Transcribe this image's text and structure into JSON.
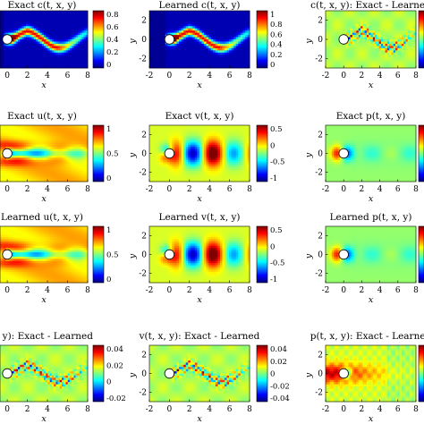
{
  "panels": [
    {
      "title": "Exact c(t, x, y)",
      "field": "c_exact",
      "xticks": [
        "0",
        "2",
        "4",
        "6",
        "8"
      ],
      "yticks": [],
      "xlabel": "x",
      "ylabel": "",
      "cbar": [
        "0.8",
        "0.6",
        "0.4",
        "0.2",
        "0"
      ]
    },
    {
      "title": "Learned c(t, x, y)",
      "field": "c_learned",
      "xticks": [
        "-2",
        "0",
        "2",
        "4",
        "6",
        "8"
      ],
      "yticks": [
        "2",
        "0",
        "-2"
      ],
      "xlabel": "x",
      "ylabel": "y",
      "cbar": [
        "1",
        "0.8",
        "0.6",
        "0.4",
        "0.2",
        "0"
      ]
    },
    {
      "title": "c(t, x, y): Exact - Learned",
      "field": "c_err",
      "xticks": [
        "-2",
        "0",
        "2",
        "4",
        "6",
        "8"
      ],
      "yticks": [
        "2",
        "0",
        "-2"
      ],
      "xlabel": "x",
      "ylabel": "y",
      "cbar": []
    },
    {
      "title": "Exact u(t, x, y)",
      "field": "u_exact",
      "xticks": [
        "0",
        "2",
        "4",
        "6",
        "8"
      ],
      "yticks": [],
      "xlabel": "x",
      "ylabel": "",
      "cbar": [
        "1",
        "0.5",
        "0"
      ]
    },
    {
      "title": "Exact v(t, x, y)",
      "field": "v_exact",
      "xticks": [
        "-2",
        "0",
        "2",
        "4",
        "6",
        "8"
      ],
      "yticks": [
        "2",
        "0",
        "-2"
      ],
      "xlabel": "x",
      "ylabel": "y",
      "cbar": [
        "0.5",
        "0",
        "-0.5",
        "-1"
      ]
    },
    {
      "title": "Exact p(t, x, y)",
      "field": "p_exact",
      "xticks": [
        "-2",
        "0",
        "2",
        "4",
        "6",
        "8"
      ],
      "yticks": [
        "2",
        "0",
        "-2"
      ],
      "xlabel": "x",
      "ylabel": "y",
      "cbar": []
    },
    {
      "title": "Learned u(t, x, y)",
      "field": "u_learned",
      "xticks": [
        "0",
        "2",
        "4",
        "6",
        "8"
      ],
      "yticks": [],
      "xlabel": "x",
      "ylabel": "",
      "cbar": [
        "1",
        "0.5",
        "0"
      ]
    },
    {
      "title": "Learned v(t, x, y)",
      "field": "v_learned",
      "xticks": [
        "-2",
        "0",
        "2",
        "4",
        "6",
        "8"
      ],
      "yticks": [
        "2",
        "0",
        "-2"
      ],
      "xlabel": "x",
      "ylabel": "y",
      "cbar": [
        "0.5",
        "0",
        "-0.5",
        "-1"
      ]
    },
    {
      "title": "Learned p(t, x, y)",
      "field": "p_learned",
      "xticks": [
        "-2",
        "0",
        "2",
        "4",
        "6",
        "8"
      ],
      "yticks": [
        "2",
        "0",
        "-2"
      ],
      "xlabel": "x",
      "ylabel": "y",
      "cbar": []
    },
    {
      "title": "x, y): Exact - Learned",
      "field": "u_err",
      "xticks": [
        "0",
        "2",
        "4",
        "6",
        "8"
      ],
      "yticks": [],
      "xlabel": "x",
      "ylabel": "",
      "cbar": [
        "0.04",
        "0.02",
        "0",
        "-0.02"
      ]
    },
    {
      "title": "v(t, x, y): Exact - Learned",
      "field": "v_err",
      "xticks": [
        "-2",
        "0",
        "2",
        "4",
        "6",
        "8"
      ],
      "yticks": [
        "2",
        "0",
        "-2"
      ],
      "xlabel": "x",
      "ylabel": "y",
      "cbar": [
        "0.04",
        "0.02",
        "0",
        "-0.02",
        "-0.04"
      ]
    },
    {
      "title": "p(t, x, y): Exact - Learned",
      "field": "p_err",
      "xticks": [
        "-2",
        "0",
        "2",
        "4",
        "6",
        "8"
      ],
      "yticks": [
        "2",
        "0",
        "-2"
      ],
      "xlabel": "x",
      "ylabel": "y",
      "cbar": []
    }
  ]
}
